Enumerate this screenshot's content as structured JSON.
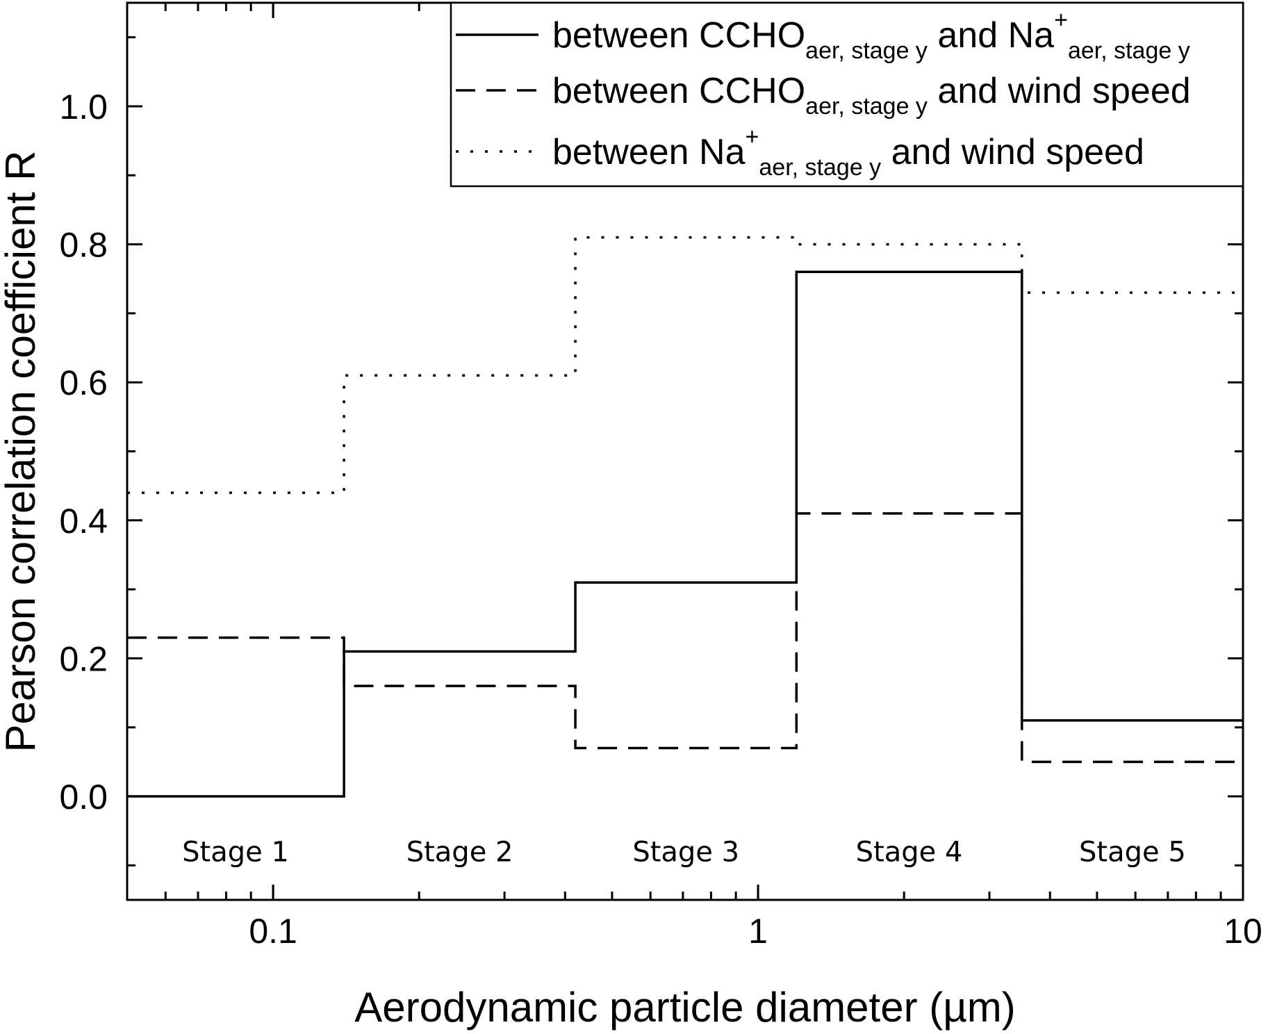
{
  "chart_data": {
    "type": "line",
    "xlabel": "Aerodynamic particle diameter (µm)",
    "ylabel": "Pearson correlation coefficient R",
    "xscale": "log",
    "xlim": [
      0.05,
      10
    ],
    "ylim": [
      -0.15,
      1.15
    ],
    "x_ticks": [
      {
        "value": 0.1,
        "label": "0.1"
      },
      {
        "value": 1,
        "label": "1"
      },
      {
        "value": 10,
        "label": "10"
      }
    ],
    "y_ticks": [
      {
        "value": 0.0,
        "label": "0.0"
      },
      {
        "value": 0.2,
        "label": "0.2"
      },
      {
        "value": 0.4,
        "label": "0.4"
      },
      {
        "value": 0.6,
        "label": "0.6"
      },
      {
        "value": 0.8,
        "label": "0.8"
      },
      {
        "value": 1.0,
        "label": "1.0"
      }
    ],
    "stage_edges": [
      0.05,
      0.14,
      0.42,
      1.2,
      3.5,
      10
    ],
    "stages": [
      "Stage 1",
      "Stage 2",
      "Stage 3",
      "Stage 4",
      "Stage 5"
    ],
    "stage_label_y": -0.08,
    "series": [
      {
        "style": "solid",
        "values": [
          0.0,
          0.21,
          0.31,
          0.76,
          0.11
        ]
      },
      {
        "style": "dashed",
        "values": [
          0.23,
          0.16,
          0.07,
          0.41,
          0.05
        ]
      },
      {
        "style": "dotted",
        "values": [
          0.44,
          0.61,
          0.81,
          0.8,
          0.73
        ]
      }
    ],
    "legend": {
      "position": "top-right",
      "entries": [
        {
          "style": "solid",
          "parts": [
            {
              "t": "between CCHO"
            },
            {
              "t": "aer, stage y",
              "sub": true
            },
            {
              "t": " and Na"
            },
            {
              "t": "+",
              "sup": true
            },
            {
              "t": "aer, stage y",
              "sub": true
            }
          ]
        },
        {
          "style": "dashed",
          "parts": [
            {
              "t": "between CCHO"
            },
            {
              "t": "aer, stage y",
              "sub": true
            },
            {
              "t": " and wind speed"
            }
          ]
        },
        {
          "style": "dotted",
          "parts": [
            {
              "t": "between Na"
            },
            {
              "t": "+",
              "sup": true
            },
            {
              "t": "aer, stage y",
              "sub": true
            },
            {
              "t": " and wind speed"
            }
          ]
        }
      ]
    }
  }
}
